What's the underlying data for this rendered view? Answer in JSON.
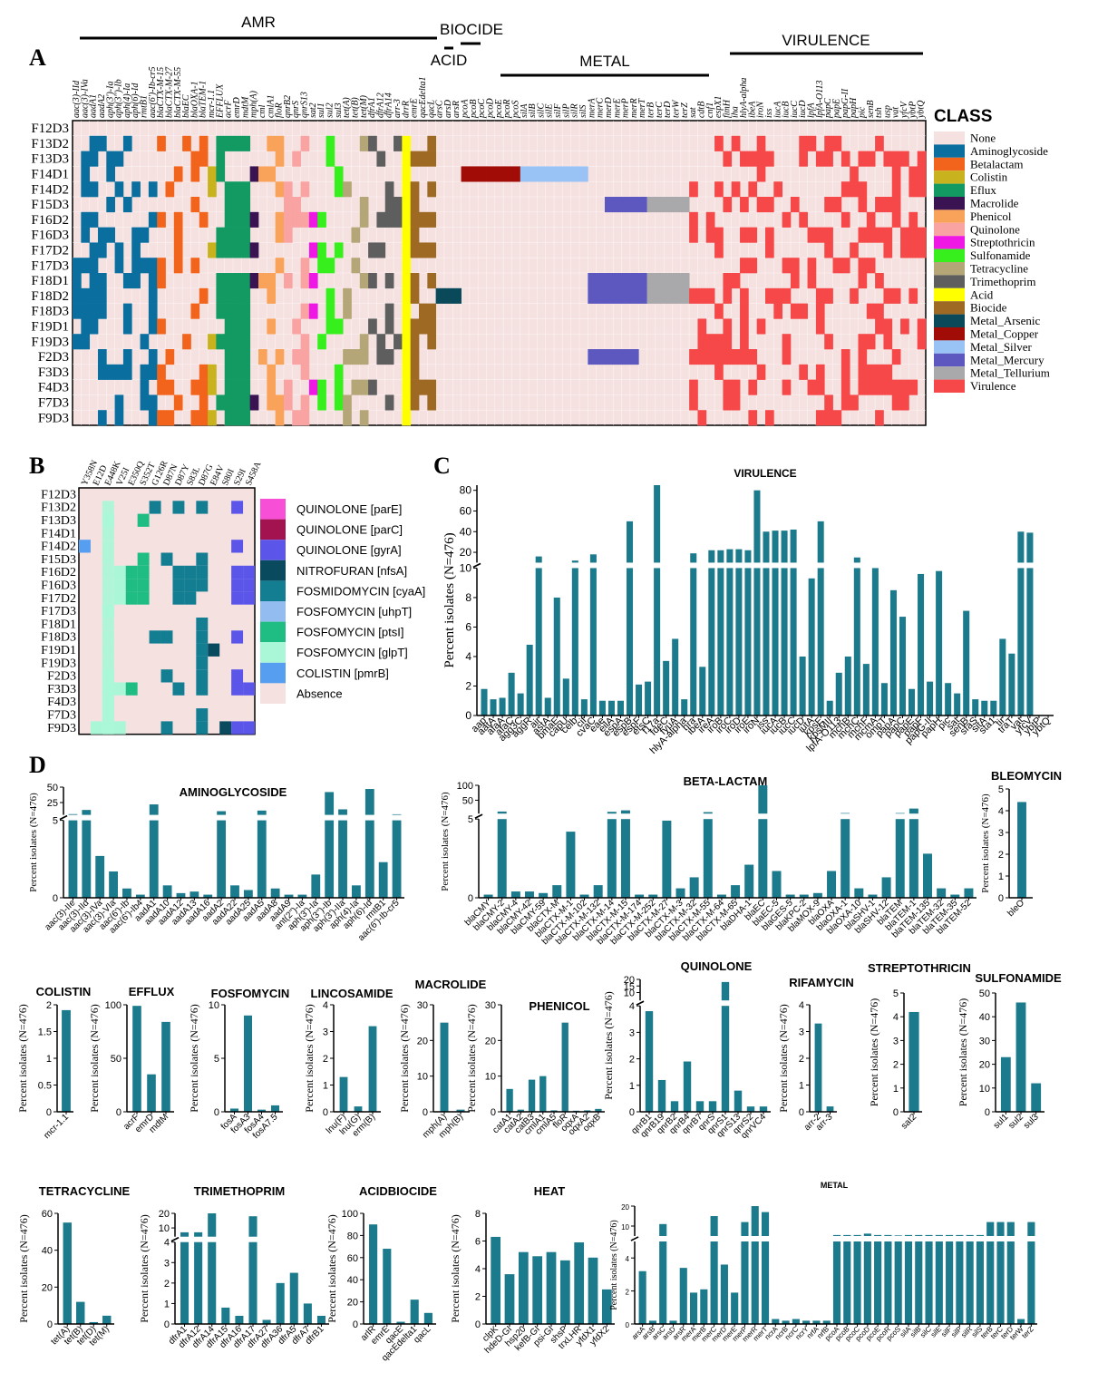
{
  "colors": {
    "bar": "#1b7a8c",
    "heat_bg": "#f6e1e1",
    "None": "#f6e1e1",
    "Aminoglycoside": "#0a6e9e",
    "Betalactam": "#f2641c",
    "Colistin": "#c8b21e",
    "Efflux": "#129a62",
    "Macrolide": "#3a1352",
    "Phenicol": "#f9a25a",
    "Quinolone": "#f9a3a3",
    "Streptothricin": "#ef17e4",
    "Sulfonamide": "#36ef1c",
    "Tetracycline": "#b5a677",
    "Trimethoprim": "#5e5e5e",
    "Acid": "#ffff00",
    "Biocide": "#9e6a23",
    "Metal_Arsenic": "#09495a",
    "Metal_Copper": "#a10d06",
    "Metal_Silver": "#99c3f5",
    "Metal_Mercury": "#5d58c0",
    "Metal_Tellurium": "#a9a8aa",
    "Virulence": "#f64848"
  },
  "panelA": {
    "label": "A",
    "groups": [
      "AMR",
      "BIOCIDE",
      "ACID",
      "METAL",
      "VIRULENCE"
    ],
    "rows": [
      "F12D3",
      "F13D2",
      "F13D3",
      "F14D1",
      "F14D2",
      "F15D3",
      "F16D2",
      "F16D3",
      "F17D2",
      "F17D3",
      "F18D1",
      "F18D2",
      "F18D3",
      "F19D1",
      "F19D3",
      "F2D3",
      "F3D3",
      "F4D3",
      "F7D3",
      "F9D3"
    ],
    "columns": [
      "aac(3)-IId",
      "aac(3)-IVa",
      "aadA1",
      "aadA2",
      "aph(3')-Ia",
      "aph(3'')-Ib",
      "aph(4)-Ia",
      "aph(6)-Id",
      "rmtB1",
      "aac(6')-Ib-cr5",
      "blaCTX-M-15",
      "blaCTX-M-27",
      "blaCTX-M-55",
      "blaEC",
      "blaOXA-1",
      "blaTEM-1",
      "mcr-1.1",
      "EFFLUX",
      "acrF",
      "emrD",
      "mdtM",
      "mph(A)",
      "cml",
      "cmlA1",
      "floR",
      "qnrB2",
      "qnrS",
      "qnrS13",
      "sat2",
      "sul1",
      "sul2",
      "sul3",
      "tet(A)",
      "tet(B)",
      "tet(M)",
      "dfrA1",
      "dfrA12",
      "dfrA14",
      "arr-3",
      "drrR",
      "emrE",
      "qacEdelta1",
      "qacL",
      "arsC",
      "arsD",
      "arsR",
      "pcoA",
      "pcoB",
      "pcoC",
      "pcoD",
      "pcoE",
      "pcoR",
      "pcoS",
      "silA",
      "silB",
      "silC",
      "silE",
      "silF",
      "silP",
      "silR",
      "silS",
      "merA",
      "merC",
      "merD",
      "merE",
      "merP",
      "merR",
      "merT",
      "terB",
      "terC",
      "terD",
      "terW",
      "terZ",
      "sat",
      "cdtB",
      "cnf1",
      "espX1",
      "fimH",
      "iha",
      "hlyA-alpha",
      "ibeA",
      "iroN",
      "iss",
      "iucA",
      "iucB",
      "iucC",
      "iucD",
      "lpfA",
      "lpfA-O113",
      "papC",
      "papE",
      "papG-II",
      "papH",
      "pic",
      "senB",
      "tsh",
      "usp",
      "vat",
      "yfcV",
      "ybtP",
      "ybtQ"
    ],
    "legend_title": "CLASS",
    "legend": [
      "None",
      "Aminoglycoside",
      "Betalactam",
      "Colistin",
      "Eflux",
      "Macrolide",
      "Phenicol",
      "Quinolone",
      "Streptothricin",
      "Sulfonamide",
      "Tetracycline",
      "Trimethoprim",
      "Acid",
      "Biocide",
      "Metal_Arsenic",
      "Metal_Copper",
      "Metal_Silver",
      "Metal_Mercury",
      "Metal_Tellurium",
      "Virulence"
    ]
  },
  "panelB": {
    "label": "B",
    "rows": [
      "F12D3",
      "F13D2",
      "F13D3",
      "F14D1",
      "F14D2",
      "F15D3",
      "F16D2",
      "F16D3",
      "F17D2",
      "F17D3",
      "F18D1",
      "F18D3",
      "F19D1",
      "F19D3",
      "F2D3",
      "F3D3",
      "F4D3",
      "F7D3",
      "F9D3"
    ],
    "columns": [
      "Y358N",
      "E12D",
      "E448K",
      "V25I",
      "E350Q",
      "S352T",
      "G126R",
      "D87N",
      "D87Y",
      "S83L",
      "D87G",
      "E84V",
      "S80I",
      "S29I",
      "S458A"
    ],
    "legend": [
      "QUINOLONE [parE]",
      "QUINOLONE [parC]",
      "QUINOLONE [gyrA]",
      "NITROFURAN [nfsA]",
      "FOSMIDOMYCIN [cyaA]",
      "FOSFOMYCIN [uhpT]",
      "FOSFOMYCIN [ptsI]",
      "FOSFOMYCIN [glpT]",
      "COLISTIN [pmrB]",
      "Absence"
    ],
    "legend_colors": [
      "#f750d6",
      "#a3134f",
      "#5b55ea",
      "#094a5e",
      "#137d92",
      "#93bdf0",
      "#1fbd84",
      "#aaf7d8",
      "#569ff0",
      "#f6e1e1"
    ]
  },
  "panelC": {
    "label": "C",
    "title": "VIRULENCE",
    "ylabel": "Percent isolates (N=476)",
    "categories": [
      "aap",
      "aatA",
      "afaA",
      "afaC",
      "agg3C",
      "aggR",
      "air",
      "astA",
      "bmaE",
      "capU",
      "celb",
      "cif",
      "cvaC",
      "eae",
      "eilA",
      "espA",
      "espB",
      "espF",
      "etsC",
      "f17a",
      "fdeC",
      "fyuA",
      "hlyA-alpha",
      "hra",
      "ibeA",
      "ireA",
      "iroB",
      "iroC",
      "iroD",
      "iroE",
      "iroN",
      "iss",
      "iucA",
      "iucB",
      "iucC",
      "iucD",
      "iutA",
      "kpsE",
      "kpsMII",
      "lpfA-O113",
      "mchB",
      "mchC",
      "mchF",
      "mcmA",
      "ompT",
      "papA",
      "papC",
      "papE",
      "papF",
      "papG-II",
      "papH",
      "pic",
      "sat",
      "senB",
      "sfaS",
      "sitA",
      "sta1",
      "tir",
      "traT",
      "vat",
      "yfcV",
      "ybtP",
      "ybtQ"
    ],
    "values": [
      1.8,
      1.1,
      1.2,
      2.9,
      1.5,
      4.8,
      16,
      1.2,
      8,
      2.5,
      12,
      1.1,
      18,
      1.0,
      1.0,
      1.0,
      50,
      2.1,
      2.3,
      85,
      3.7,
      5.2,
      1.1,
      19,
      3.3,
      22,
      22,
      23,
      23,
      22,
      80,
      40,
      41,
      41,
      42,
      4.0,
      9.3,
      50,
      1.0,
      2.9,
      4.0,
      15,
      3.5,
      10,
      2.2,
      8.5,
      6.7,
      1.8,
      9.6,
      2.3,
      9.8,
      2.2,
      1.5,
      7.1,
      1.1,
      1.0,
      1.0,
      5.2,
      4.2,
      40,
      39,
      0,
      0
    ]
  },
  "panelD": {
    "label": "D",
    "ylabel": "Percent isolates (N=476)",
    "aminoglycoside": {
      "title": "AMINOGLYCOSIDE",
      "categories": [
        "aac(3)-IIe",
        "aac(3)-IId",
        "aac(3)-IVa",
        "aac(3)-VIa",
        "aac(6')-Ib",
        "aac(6')-Ib4",
        "aadA1",
        "aadA10",
        "aadA12",
        "aadA13",
        "aadA16",
        "aadA2",
        "aadA22",
        "aadA25",
        "aadA5",
        "aadA8",
        "aadA9",
        "ant(2'')-Ia",
        "aph(3')-Ia",
        "aph(3'')-Ib",
        "aph(3')-IIa",
        "aph(4)-Ia",
        "aph(6)-Id",
        "rmtB1",
        "aac(6')-Ib-cr5"
      ],
      "values": [
        6.2,
        13,
        2.7,
        1.7,
        0.6,
        0.2,
        22,
        0.8,
        0.3,
        0.4,
        0.2,
        11,
        0.8,
        0.5,
        12,
        0.6,
        0.2,
        0.2,
        1.5,
        42,
        14,
        0.8,
        47,
        2.3,
        6
      ]
    },
    "betalactam": {
      "title": "BETA-LACTAM",
      "categories": [
        "blaCMY",
        "blaCMY-2",
        "blaCMY-4",
        "blaCMY-42",
        "blaCMY-59",
        "blaCTX-M",
        "blaCTX-M-1",
        "blaCTX-M-102",
        "blaCTX-M-132",
        "blaCTX-M-14",
        "blaCTX-M-15",
        "blaCTX-M-174",
        "blaCTX-M-252",
        "blaCTX-M-27",
        "blaCTX-M-3",
        "blaCTX-M-32",
        "blaCTX-M-55",
        "blaCTX-M-64",
        "blaCTX-M-65",
        "blaDHA-1",
        "blaEC",
        "blaEC-5",
        "blaGES-5",
        "blaKPC-2",
        "blaMOX-9",
        "blaOXA",
        "blaOXA-1",
        "blaOXA-10",
        "blaSHV-1",
        "blaSHV-12",
        "blaTEM",
        "blaTEM-1",
        "blaTEM-135",
        "blaTEM-32",
        "blaTEM-35",
        "blaTEM-52"
      ],
      "values": [
        0.2,
        12,
        0.4,
        0.4,
        0.3,
        0.8,
        4.2,
        0.2,
        0.8,
        11,
        16,
        0.2,
        0.2,
        4.9,
        0.6,
        1.3,
        10,
        0.2,
        0.8,
        2.1,
        100,
        1.7,
        0.2,
        0.2,
        0.3,
        1.7,
        6.8,
        0.6,
        0.2,
        1.3,
        6,
        22,
        2.8,
        0.6,
        0.2,
        0.6
      ]
    },
    "bleomycin": {
      "title": "BLEOMYCIN",
      "categories": [
        "bleO"
      ],
      "values": [
        4.4
      ],
      "ylim": [
        0,
        5
      ]
    },
    "colistin": {
      "title": "COLISTIN",
      "categories": [
        "mcr-1.1"
      ],
      "values": [
        1.9
      ],
      "ylim": [
        0,
        2.0
      ]
    },
    "efflux": {
      "title": "EFFLUX",
      "categories": [
        "acrF",
        "emrD",
        "mdtM"
      ],
      "values": [
        99,
        35,
        84
      ],
      "ylim": [
        0,
        100
      ]
    },
    "fosfomycin": {
      "title": "FOSFOMYCIN",
      "categories": [
        "fosA",
        "fosA3",
        "fosA4",
        "fosA7.5"
      ],
      "values": [
        0.3,
        9.0,
        0.2,
        0.6
      ],
      "ylim": [
        0,
        10
      ]
    },
    "lincosamide": {
      "title": "LINCOSAMIDE",
      "categories": [
        "lnu(F)",
        "lnu(G)",
        "erm(B)"
      ],
      "values": [
        1.3,
        0.2,
        3.2
      ],
      "ylim": [
        0,
        4
      ]
    },
    "macrolide": {
      "title": "MACROLIDE",
      "categories": [
        "mph(A)",
        "mph(B)"
      ],
      "values": [
        25,
        0.6
      ],
      "ylim": [
        0,
        30
      ]
    },
    "phenicol": {
      "title": "PHENICOL",
      "categories": [
        "catA1",
        "catA2",
        "catB3",
        "cmlA1",
        "cmlA5",
        "floR",
        "oqxA",
        "oqxA2",
        "oqxB"
      ],
      "values": [
        6.4,
        0.6,
        9.0,
        10,
        0.4,
        25,
        0.3,
        0.4,
        0.8
      ],
      "ylim": [
        0,
        30
      ]
    },
    "quinolone": {
      "title": "QUINOLONE",
      "categories": [
        "qnrB1",
        "qnrB19",
        "qnrB2",
        "qnrB4",
        "qnrB7",
        "qnrS",
        "qnrS1",
        "qnrS13",
        "qnrS2",
        "qnrVC4"
      ],
      "values": [
        3.8,
        1.2,
        0.4,
        1.9,
        0.4,
        0.4,
        18,
        0.8,
        0.2,
        0.2
      ]
    },
    "rifamycin": {
      "title": "RIFAMYCIN",
      "categories": [
        "arr-2",
        "arr-3"
      ],
      "values": [
        3.3,
        0.2
      ],
      "ylim": [
        0,
        4
      ]
    },
    "streptothricin": {
      "title": "STREPTOTHRICIN",
      "categories": [
        "sat2"
      ],
      "values": [
        4.2
      ],
      "ylim": [
        0,
        5
      ]
    },
    "sulfonamide": {
      "title": "SULFONAMIDE",
      "categories": [
        "sul1",
        "sul2",
        "sul3"
      ],
      "values": [
        23,
        46,
        12
      ],
      "ylim": [
        0,
        50
      ]
    },
    "tetracycline": {
      "title": "TETRACYCLINE",
      "categories": [
        "tet(A)",
        "tet(B)",
        "tet(D)",
        "tet(M)"
      ],
      "values": [
        55,
        12,
        1,
        4.5
      ],
      "ylim": [
        0,
        60
      ]
    },
    "trimethoprim": {
      "title": "TRIMETHOPRIM",
      "categories": [
        "dfrA1",
        "dfrA12",
        "dfrA14",
        "dfrA15",
        "dfrA16",
        "dfrA17",
        "dfrA27",
        "dfrA36",
        "dfrA5",
        "dfrA7",
        "dfrB1"
      ],
      "values": [
        7,
        7,
        21,
        0.8,
        0.4,
        18,
        0.2,
        2.0,
        2.5,
        1.0,
        0.4
      ]
    },
    "acidbiocide": {
      "title": "ACIDBIOCIDE",
      "categories": [
        "arlR",
        "emrE",
        "qacE",
        "qacEdelta1",
        "qacL"
      ],
      "values": [
        90,
        68,
        2,
        22,
        10
      ],
      "ylim": [
        0,
        100
      ]
    },
    "heat": {
      "title": "HEAT",
      "categories": [
        "clpK",
        "hdeD-GI",
        "hsp20",
        "kefB-GI",
        "psi-GI",
        "shsP",
        "trxLHR",
        "yfdX1",
        "yfdX2"
      ],
      "values": [
        6.3,
        3.6,
        5.2,
        4.9,
        5.2,
        4.6,
        5.9,
        4.8,
        2.5
      ],
      "ylim": [
        0,
        8
      ]
    },
    "metal": {
      "title": "METAL",
      "categories": [
        "arsA",
        "arsB",
        "arsC",
        "arsD",
        "arsR",
        "merA",
        "merB",
        "merC",
        "merD",
        "merE",
        "merP",
        "merR",
        "merT",
        "ncrA",
        "ncrB",
        "ncrC",
        "ncrY",
        "nrfA",
        "nrfB",
        "pcoA",
        "pcoB",
        "pcoC",
        "pcoD",
        "pcoE",
        "pcoR",
        "pcoS",
        "silA",
        "silB",
        "silC",
        "silE",
        "silF",
        "silP",
        "silR",
        "silS",
        "terB",
        "terC",
        "terD",
        "terW",
        "terZ"
      ],
      "values": [
        3.2,
        0.2,
        11,
        0.2,
        3.4,
        1.9,
        2.1,
        15,
        3.6,
        1.9,
        12,
        20,
        17,
        0.3,
        0.2,
        0.3,
        0.2,
        0.2,
        0.2,
        5.5,
        5.5,
        5.5,
        6.2,
        5.5,
        5.5,
        5.2,
        5.5,
        5.5,
        5.5,
        5.5,
        5.5,
        5.5,
        5.5,
        5.5,
        12,
        12,
        12,
        0.3,
        12
      ]
    }
  },
  "chart_data": [
    {
      "type": "heatmap",
      "title": "A",
      "ylabels_ref": "panelA.rows",
      "xlabels_ref": "panelA.columns"
    },
    {
      "type": "heatmap",
      "title": "B",
      "ylabels_ref": "panelB.rows",
      "xlabels_ref": "panelB.columns"
    },
    {
      "type": "bar",
      "title": "VIRULENCE",
      "ylabel": "Percent isolates (N=476)",
      "ref": "panelC"
    },
    {
      "type": "bar",
      "title": "AMINOGLYCOSIDE",
      "ref": "panelD.aminoglycoside"
    },
    {
      "type": "bar",
      "title": "BETA-LACTAM",
      "ref": "panelD.betalactam"
    },
    {
      "type": "bar",
      "title": "METAL",
      "ref": "panelD.metal"
    }
  ]
}
